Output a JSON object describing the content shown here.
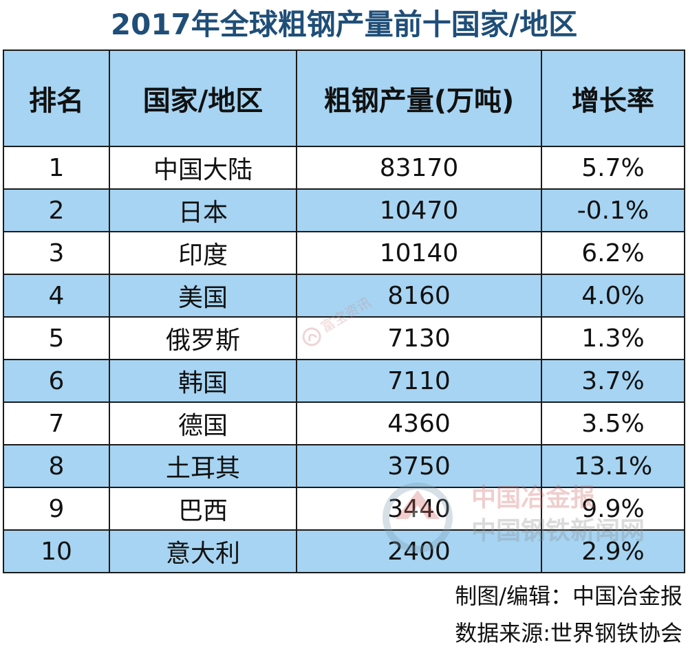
{
  "chart_data": {
    "type": "table",
    "title": "2017年全球粗钢产量前十国家/地区",
    "columns": [
      "排名",
      "国家/地区",
      "粗钢产量(万吨)",
      "增长率"
    ],
    "rows": [
      [
        "1",
        "中国大陆",
        "83170",
        "5.7%"
      ],
      [
        "2",
        "日本",
        "10470",
        "-0.1%"
      ],
      [
        "3",
        "印度",
        "10140",
        "6.2%"
      ],
      [
        "4",
        "美国",
        "8160",
        "4.0%"
      ],
      [
        "5",
        "俄罗斯",
        "7130",
        "1.3%"
      ],
      [
        "6",
        "韩国",
        "7110",
        "3.7%"
      ],
      [
        "7",
        "德国",
        "4360",
        "3.5%"
      ],
      [
        "8",
        "土耳其",
        "3750",
        "13.1%"
      ],
      [
        "9",
        "巴西",
        "3440",
        "9.9%"
      ],
      [
        "10",
        "意大利",
        "2400",
        "2.9%"
      ]
    ],
    "header_color": "#a6d4f2",
    "stripe_color": "#a6d4f2",
    "title_color": "#1f4e78"
  },
  "credits": {
    "editor": "制图/编辑：中国冶金报",
    "source": "数据来源:世界钢铁协会"
  },
  "watermarks": {
    "small": "富宝资讯",
    "big_line1": "中国冶金报",
    "big_line2": "中国钢铁新闻网"
  }
}
